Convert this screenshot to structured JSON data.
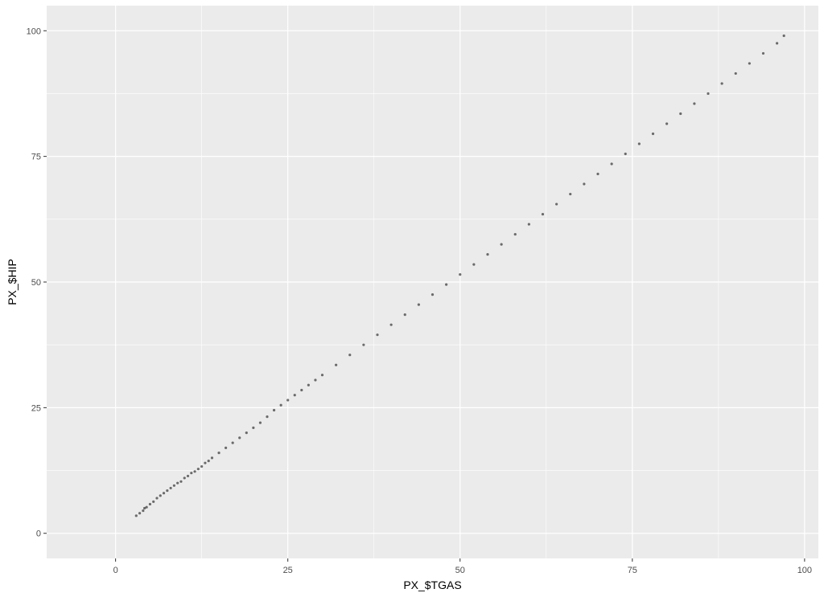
{
  "chart_data": {
    "type": "scatter",
    "title": "",
    "xlabel": "PX_$TGAS",
    "ylabel": "PX_$HIP",
    "xlim": [
      -10,
      102
    ],
    "ylim": [
      -5,
      105
    ],
    "x_ticks": [
      0,
      25,
      50,
      75,
      100
    ],
    "y_ticks": [
      0,
      25,
      50,
      75,
      100
    ],
    "x_tick_labels": [
      "0",
      "25",
      "50",
      "75",
      "100"
    ],
    "y_tick_labels": [
      "0",
      "25",
      "50",
      "75",
      "100"
    ],
    "grid": true,
    "legend": "none",
    "point_alpha": 0.1,
    "point_color": "#000000",
    "panel_color": "#ebebeb",
    "grid_color": "#ffffff",
    "series": [
      {
        "x": [
          3,
          3.5,
          4,
          4.2,
          4.5,
          5,
          5.5,
          6,
          6.5,
          7,
          7.5,
          8,
          8.5,
          9,
          9.5,
          10,
          10.5,
          11,
          11.5,
          12,
          12.5,
          13,
          13.5,
          14,
          15,
          16,
          17,
          18,
          19,
          20,
          21,
          22,
          23,
          24,
          25,
          26,
          27,
          28,
          29,
          30,
          32,
          34,
          36,
          38,
          40,
          42,
          44,
          46,
          48,
          50,
          52,
          54,
          56,
          58,
          60,
          62,
          64,
          66,
          68,
          70,
          72,
          74,
          76,
          78,
          80,
          82,
          84,
          86,
          88,
          90,
          92,
          94,
          96,
          97
        ],
        "y": [
          3.5,
          4,
          4.5,
          5,
          5.2,
          5.8,
          6.3,
          7,
          7.5,
          8,
          8.5,
          9,
          9.5,
          10,
          10.3,
          11,
          11.4,
          12,
          12.3,
          12.8,
          13.3,
          14,
          14.4,
          15,
          16,
          17,
          18,
          19,
          20,
          21,
          22,
          23.2,
          24.5,
          25.5,
          26.5,
          27.5,
          28.5,
          29.5,
          30.5,
          31.5,
          33.5,
          35.5,
          37.5,
          39.5,
          41.5,
          43.5,
          45.5,
          47.5,
          49.5,
          51.5,
          53.5,
          55.5,
          57.5,
          59.5,
          61.5,
          63.5,
          65.5,
          67.5,
          69.5,
          71.5,
          73.5,
          75.5,
          77.5,
          79.5,
          81.5,
          83.5,
          85.5,
          87.5,
          89.5,
          91.5,
          93.5,
          95.5,
          97.5,
          99
        ]
      }
    ]
  }
}
